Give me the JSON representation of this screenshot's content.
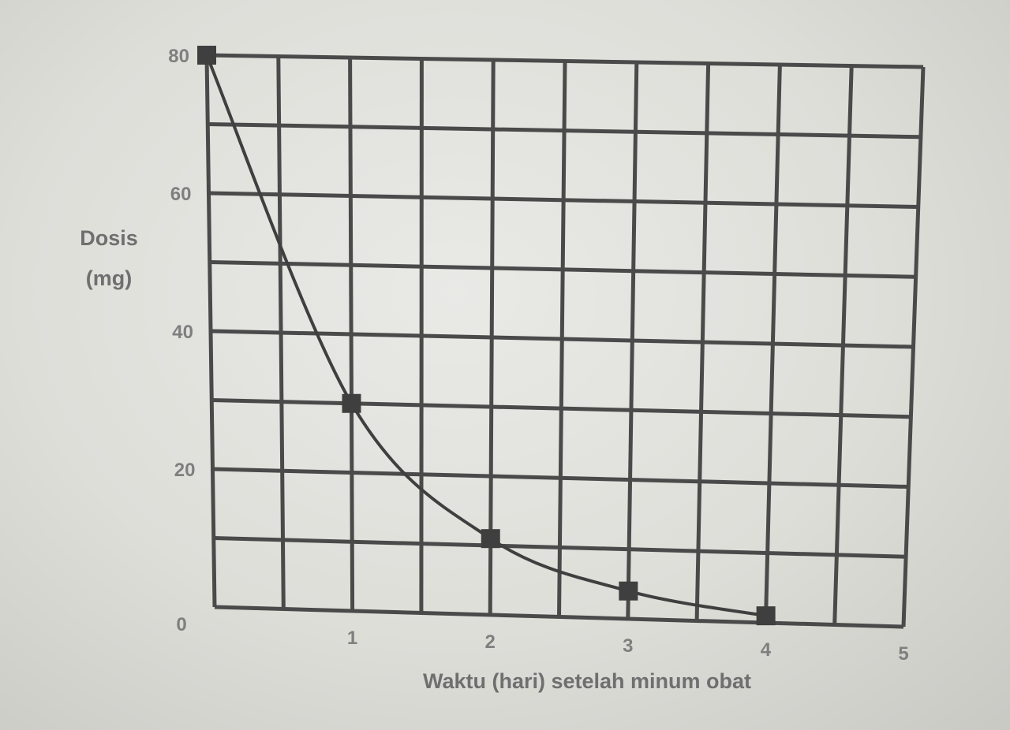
{
  "chart_data": {
    "type": "line",
    "title": "",
    "xlabel": "Waktu (hari) setelah minum obat",
    "ylabel_lines": [
      "Dosis",
      "(mg)"
    ],
    "xlim": [
      0,
      5
    ],
    "ylim": [
      0,
      80
    ],
    "x_ticks": [
      {
        "value": 0,
        "label": "0"
      },
      {
        "value": 1,
        "label": "1"
      },
      {
        "value": 2,
        "label": "2"
      },
      {
        "value": 3,
        "label": "3"
      },
      {
        "value": 4,
        "label": "4"
      },
      {
        "value": 5,
        "label": "5"
      }
    ],
    "y_ticks": [
      {
        "value": 20,
        "label": "20"
      },
      {
        "value": 40,
        "label": "40"
      },
      {
        "value": 60,
        "label": "60"
      },
      {
        "value": 80,
        "label": "80"
      }
    ],
    "grid": true,
    "grid_step_x": 0.5,
    "grid_step_y": 10,
    "series": [
      {
        "x": [
          0,
          1,
          2,
          3,
          4
        ],
        "y": [
          80,
          30,
          11,
          4,
          1
        ],
        "marker": "square",
        "color": "#3f3f3f"
      }
    ]
  }
}
